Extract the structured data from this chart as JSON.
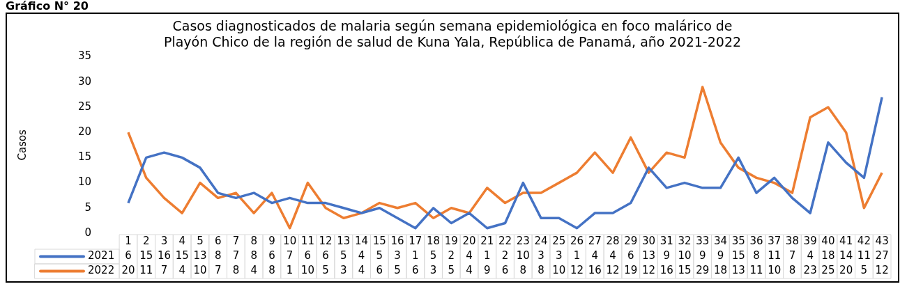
{
  "chart_data": {
    "type": "line",
    "title": "Casos diagnosticados de malaria según semana epidemiológica en foco malárico de Playón Chico de la región de salud de Kuna Yala, República de Panamá, año 2021-2022",
    "ylabel": "Casos",
    "annotations": [
      "Gráfico N° 20"
    ],
    "categories": [
      "1",
      "2",
      "3",
      "4",
      "5",
      "6",
      "7",
      "8",
      "9",
      "10",
      "11",
      "12",
      "13",
      "14",
      "15",
      "16",
      "17",
      "18",
      "19",
      "20",
      "21",
      "22",
      "23",
      "24",
      "25",
      "26",
      "27",
      "28",
      "29",
      "30",
      "31",
      "32",
      "33",
      "34",
      "35",
      "36",
      "37",
      "38",
      "39",
      "40",
      "41",
      "42",
      "43"
    ],
    "series": [
      {
        "name": "2021",
        "color": "#4472c4",
        "values": [
          6,
          15,
          16,
          15,
          13,
          8,
          7,
          8,
          6,
          7,
          6,
          6,
          5,
          4,
          5,
          3,
          1,
          5,
          2,
          4,
          1,
          2,
          10,
          3,
          3,
          1,
          4,
          4,
          6,
          13,
          9,
          10,
          9,
          9,
          15,
          8,
          11,
          7,
          4,
          18,
          14,
          11,
          27
        ]
      },
      {
        "name": "2022",
        "color": "#ed7d31",
        "values": [
          20,
          11,
          7,
          4,
          10,
          7,
          8,
          4,
          8,
          1,
          10,
          5,
          3,
          4,
          6,
          5,
          6,
          3,
          5,
          4,
          9,
          6,
          8,
          8,
          10,
          12,
          16,
          12,
          19,
          12,
          16,
          15,
          29,
          18,
          13,
          11,
          10,
          8,
          23,
          25,
          20,
          5,
          12
        ]
      }
    ],
    "ylim": [
      0,
      35
    ],
    "yticks": [
      0,
      5,
      10,
      15,
      20,
      25,
      30,
      35
    ],
    "grid": false,
    "legend": "bottom",
    "data_labels": true,
    "marker": "none",
    "line_style": "solid"
  }
}
